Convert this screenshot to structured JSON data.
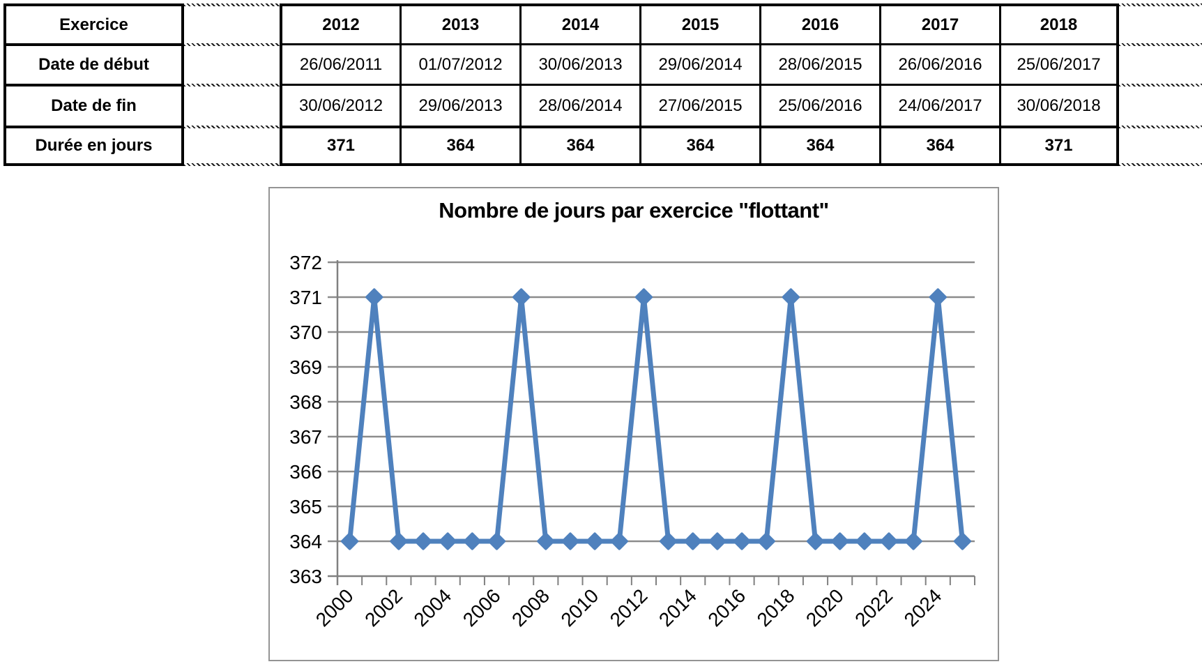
{
  "table": {
    "corner_label": "Exercice",
    "row_labels": [
      "Date de début",
      "Date de fin",
      "Durée en jours"
    ],
    "years": [
      "2012",
      "2013",
      "2014",
      "2015",
      "2016",
      "2017",
      "2018"
    ],
    "date_debut": [
      "26/06/2011",
      "01/07/2012",
      "30/06/2013",
      "29/06/2014",
      "28/06/2015",
      "26/06/2016",
      "25/06/2017"
    ],
    "date_fin": [
      "30/06/2012",
      "29/06/2013",
      "28/06/2014",
      "27/06/2015",
      "25/06/2016",
      "24/06/2017",
      "30/06/2018"
    ],
    "duree": [
      "371",
      "364",
      "364",
      "364",
      "364",
      "364",
      "371"
    ]
  },
  "chart_data": {
    "type": "line",
    "title": "Nombre de jours par exercice \"flottant\"",
    "x": [
      2000,
      2001,
      2002,
      2003,
      2004,
      2005,
      2006,
      2007,
      2008,
      2009,
      2010,
      2011,
      2012,
      2013,
      2014,
      2015,
      2016,
      2017,
      2018,
      2019,
      2020,
      2021,
      2022,
      2023,
      2024,
      2025
    ],
    "values": [
      364,
      371,
      364,
      364,
      364,
      364,
      364,
      371,
      364,
      364,
      364,
      364,
      371,
      364,
      364,
      364,
      364,
      364,
      371,
      364,
      364,
      364,
      364,
      364,
      371,
      364
    ],
    "ylim": [
      363,
      372
    ],
    "ytick_step": 1,
    "xtick_labels": [
      "2000",
      "2002",
      "2004",
      "2006",
      "2008",
      "2010",
      "2012",
      "2014",
      "2016",
      "2018",
      "2020",
      "2022",
      "2024"
    ],
    "grid": true,
    "legend": "none",
    "marker": "diamond",
    "line_color": "#4F81BD",
    "gridline_color": "#8C8C8C",
    "axis_color": "#808080",
    "text_color": "#000000"
  }
}
